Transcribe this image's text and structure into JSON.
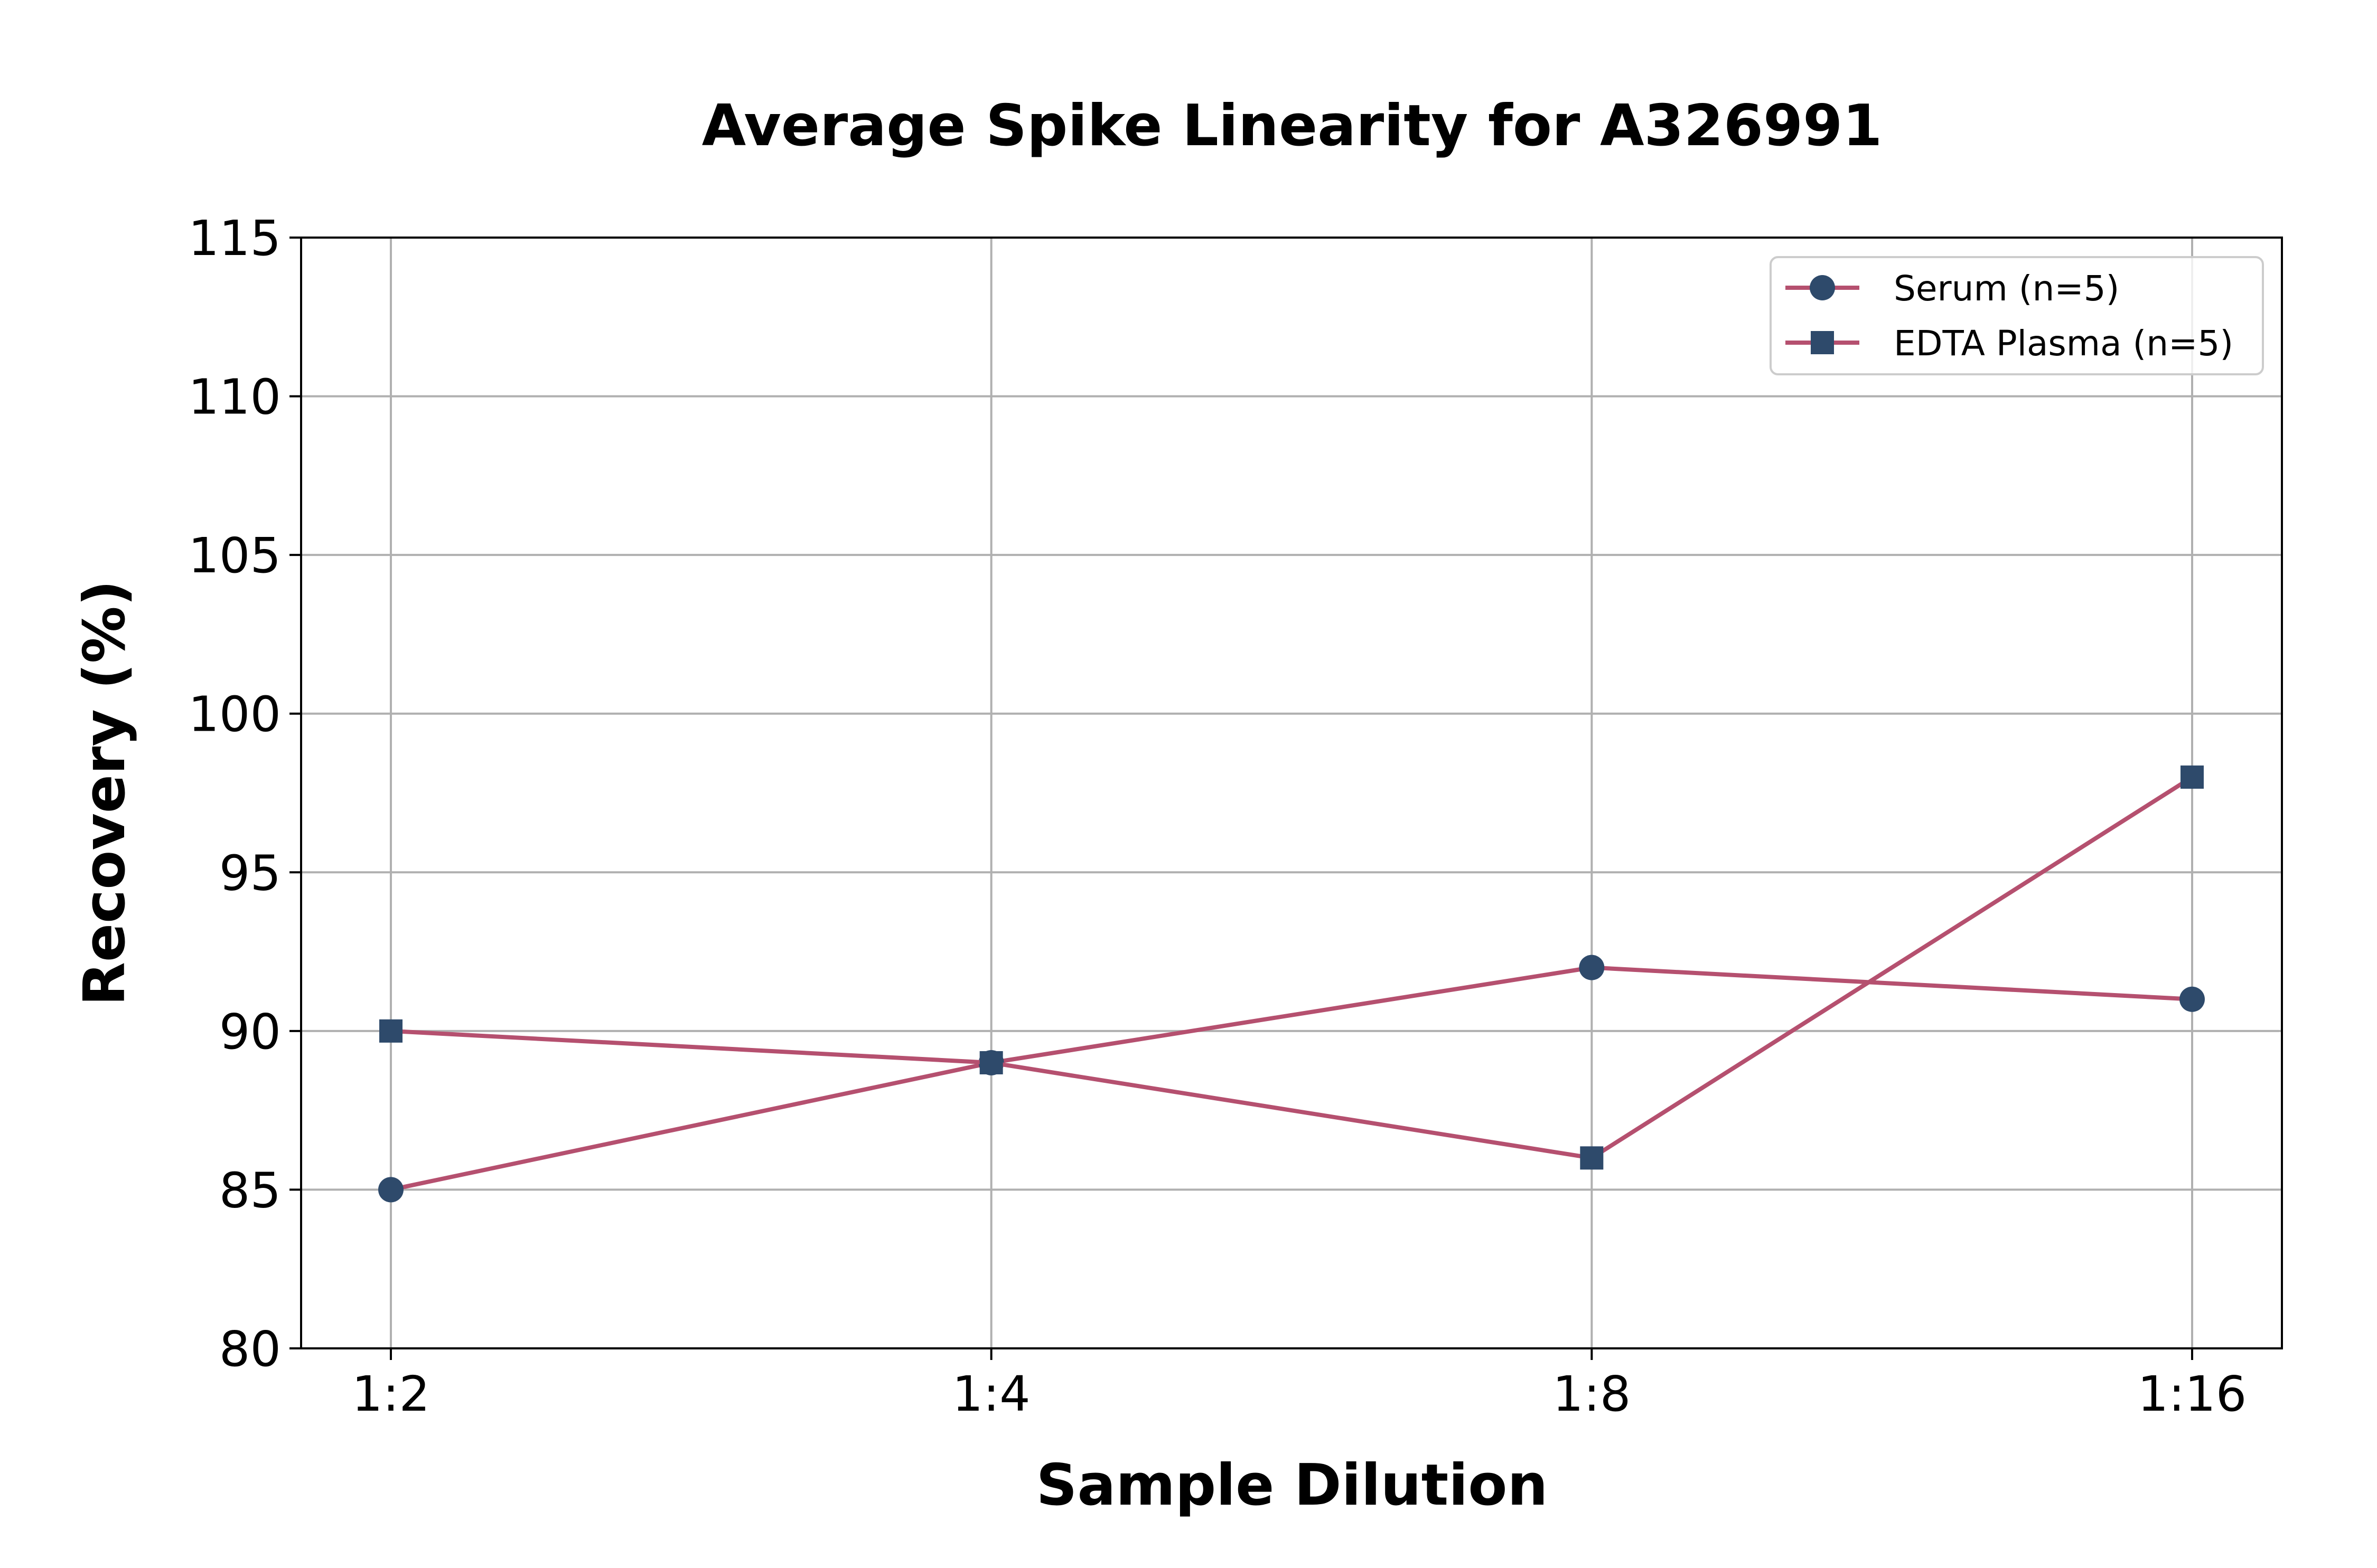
{
  "chart_data": {
    "type": "line",
    "title": "Average Spike Linearity for A326991",
    "xlabel": "Sample Dilution",
    "ylabel": "Recovery (%)",
    "categories": [
      "1:2",
      "1:4",
      "1:8",
      "1:16"
    ],
    "ylim": [
      80,
      115
    ],
    "yticks": [
      80,
      85,
      90,
      95,
      100,
      105,
      110,
      115
    ],
    "grid": true,
    "legend_position": "top-right",
    "series": [
      {
        "name": "Serum (n=5)",
        "marker": "circle",
        "values": [
          85,
          89,
          92,
          91
        ]
      },
      {
        "name": "EDTA Plasma (n=5)",
        "marker": "square",
        "values": [
          90,
          89,
          86,
          98
        ]
      }
    ],
    "colors": {
      "line": "#b5506f",
      "marker": "#2e4a6b",
      "grid": "#b0b0b0",
      "axis": "#000000"
    }
  }
}
